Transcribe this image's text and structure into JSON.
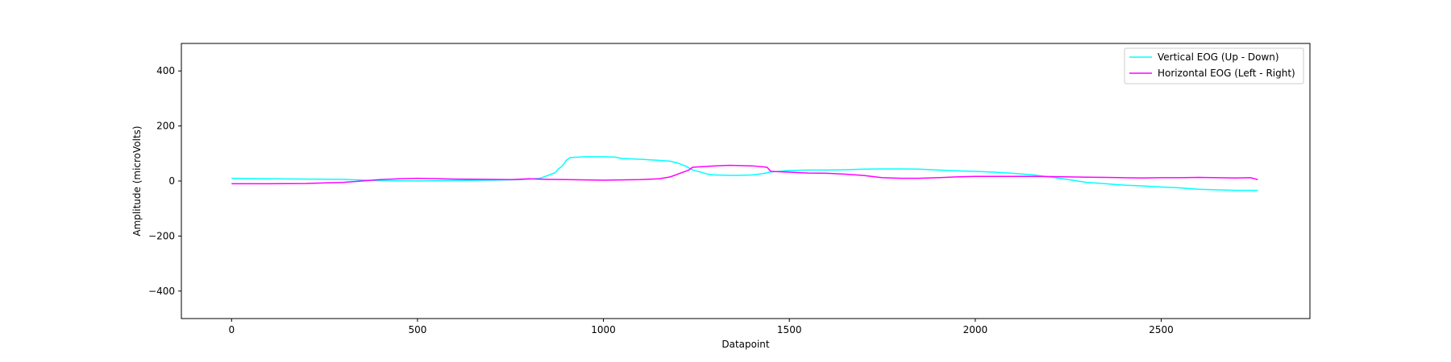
{
  "chart_data": {
    "type": "line",
    "title": "",
    "xlabel": "Datapoint",
    "ylabel": "Amplitude (microVolts)",
    "xlim": [
      -135,
      2900
    ],
    "ylim": [
      -500,
      500
    ],
    "xticks": [
      0,
      500,
      1000,
      1500,
      2000,
      2500
    ],
    "yticks": [
      -400,
      -200,
      0,
      200,
      400
    ],
    "grid": false,
    "legend_position": "top-right",
    "series": [
      {
        "name": "Vertical EOG (Up - Down)",
        "color": "#00ffff",
        "x": [
          0,
          100,
          200,
          300,
          400,
          500,
          600,
          700,
          780,
          830,
          850,
          870,
          880,
          890,
          900,
          910,
          950,
          1000,
          1030,
          1050,
          1100,
          1150,
          1180,
          1200,
          1220,
          1240,
          1260,
          1280,
          1300,
          1350,
          1400,
          1430,
          1450,
          1500,
          1550,
          1600,
          1650,
          1700,
          1750,
          1800,
          1850,
          1900,
          1950,
          2000,
          2050,
          2100,
          2150,
          2200,
          2250,
          2300,
          2350,
          2400,
          2450,
          2500,
          2550,
          2600,
          2650,
          2700,
          2760
        ],
        "y": [
          10,
          8,
          7,
          6,
          1,
          0,
          2,
          3,
          5,
          10,
          20,
          30,
          45,
          55,
          75,
          85,
          88,
          88,
          87,
          82,
          79,
          75,
          72,
          65,
          55,
          40,
          33,
          25,
          22,
          20,
          22,
          27,
          33,
          38,
          40,
          40,
          41,
          43,
          44,
          44,
          43,
          40,
          37,
          35,
          32,
          28,
          23,
          15,
          5,
          -5,
          -10,
          -15,
          -18,
          -22,
          -25,
          -30,
          -32,
          -34,
          -34
        ]
      },
      {
        "name": "Horizontal EOG (Left - Right)",
        "color": "#ff00ff",
        "x": [
          0,
          100,
          200,
          250,
          300,
          350,
          400,
          450,
          500,
          600,
          700,
          750,
          800,
          850,
          900,
          950,
          1000,
          1050,
          1100,
          1150,
          1180,
          1200,
          1220,
          1230,
          1240,
          1300,
          1340,
          1400,
          1440,
          1450,
          1500,
          1550,
          1600,
          1650,
          1700,
          1750,
          1800,
          1850,
          1900,
          1950,
          2000,
          2050,
          2100,
          2150,
          2200,
          2250,
          2300,
          2350,
          2400,
          2450,
          2500,
          2550,
          2600,
          2650,
          2700,
          2740,
          2760
        ],
        "y": [
          -10,
          -10,
          -9,
          -7,
          -5,
          0,
          5,
          8,
          10,
          7,
          6,
          5,
          8,
          6,
          5,
          4,
          3,
          4,
          5,
          8,
          15,
          25,
          35,
          40,
          50,
          55,
          57,
          55,
          50,
          35,
          32,
          29,
          28,
          25,
          20,
          12,
          10,
          10,
          12,
          15,
          17,
          17,
          17,
          17,
          16,
          15,
          14,
          13,
          12,
          11,
          12,
          12,
          13,
          12,
          11,
          12,
          5
        ]
      }
    ]
  }
}
